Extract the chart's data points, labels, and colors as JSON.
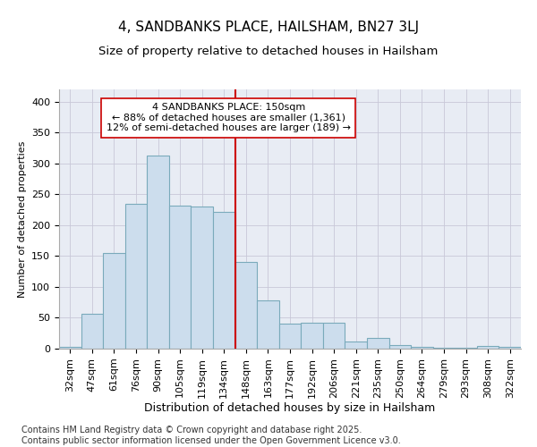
{
  "title": "4, SANDBANKS PLACE, HAILSHAM, BN27 3LJ",
  "subtitle": "Size of property relative to detached houses in Hailsham",
  "xlabel": "Distribution of detached houses by size in Hailsham",
  "ylabel": "Number of detached properties",
  "categories": [
    "32sqm",
    "47sqm",
    "61sqm",
    "76sqm",
    "90sqm",
    "105sqm",
    "119sqm",
    "134sqm",
    "148sqm",
    "163sqm",
    "177sqm",
    "192sqm",
    "206sqm",
    "221sqm",
    "235sqm",
    "250sqm",
    "264sqm",
    "279sqm",
    "293sqm",
    "308sqm",
    "322sqm"
  ],
  "values": [
    3,
    57,
    155,
    235,
    313,
    232,
    231,
    222,
    140,
    78,
    40,
    42,
    42,
    12,
    18,
    6,
    3,
    2,
    1,
    4,
    3
  ],
  "bar_color": "#ccdded",
  "bar_edge_color": "#7aaabb",
  "vline_x_index": 8,
  "vline_color": "#cc0000",
  "annotation_text": "4 SANDBANKS PLACE: 150sqm\n← 88% of detached houses are smaller (1,361)\n12% of semi-detached houses are larger (189) →",
  "annotation_box_color": "#ffffff",
  "annotation_box_edge": "#cc0000",
  "ylim": [
    0,
    420
  ],
  "yticks": [
    0,
    50,
    100,
    150,
    200,
    250,
    300,
    350,
    400
  ],
  "grid_color": "#c8c8d8",
  "bg_color": "#e8ecf4",
  "footer": "Contains HM Land Registry data © Crown copyright and database right 2025.\nContains public sector information licensed under the Open Government Licence v3.0.",
  "title_fontsize": 11,
  "subtitle_fontsize": 9.5,
  "xlabel_fontsize": 9,
  "ylabel_fontsize": 8,
  "tick_fontsize": 8,
  "annot_fontsize": 8,
  "footer_fontsize": 7
}
